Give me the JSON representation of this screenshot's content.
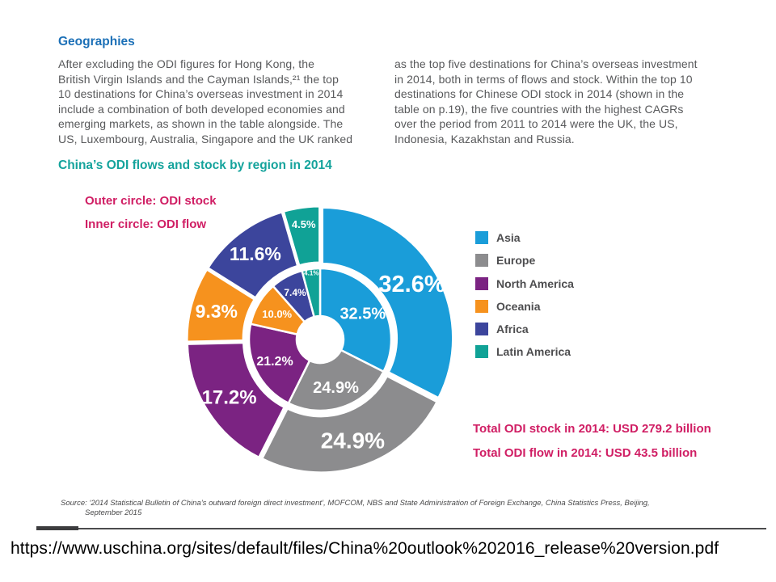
{
  "page": {
    "url_caption": "https://www.uschina.org/sites/default/files/China%20outlook%202016_release%20version.pdf"
  },
  "article": {
    "section_heading": "Geographies",
    "col_left": "After excluding the ODI figures for Hong Kong, the\nBritish Virgin Islands and the Cayman Islands,²¹ the top\n10 destinations for China’s overseas investment in 2014\ninclude a combination of both developed economies and\nemerging markets, as shown in the table alongside. The\nUS, Luxembourg, Australia, Singapore and the UK ranked",
    "col_right": "as the top five destinations for China’s overseas investment\nin 2014, both in terms of flows and stock. Within the top 10\ndestinations for Chinese ODI stock in 2014 (shown in the\ntable on p.19), the five countries with the highest CAGRs\nover the period from 2011 to 2014 were the UK, the US,\nIndonesia, Kazakhstan and Russia.",
    "annotation_outer": "Outer circle: ODI stock",
    "annotation_inner": "Inner circle: ODI flow",
    "total_stock": "Total ODI stock in 2014: USD 279.2 billion",
    "total_flow": "Total ODI flow in 2014: USD 43.5 billion",
    "source_line1": "Source: ‘2014 Statistical Bulletin of China’s outward foreign direct investment’, MOFCOM, NBS and State Administration of Foreign Exchange, China Statistics Press, Beijing,",
    "source_line2": "September 2015"
  },
  "colors": {
    "heading_blue": "#1c70b7",
    "title_teal": "#14a39c",
    "accent_pink": "#d01e64",
    "body_gray": "#58595b",
    "legend_text": "#4d4d4f"
  },
  "chart_data": {
    "type": "donut-nested",
    "title": "China’s ODI flows and stock by region in 2014",
    "annotations": [
      "Outer circle: ODI stock",
      "Inner circle: ODI flow"
    ],
    "categories": [
      "Asia",
      "Europe",
      "North America",
      "Oceania",
      "Africa",
      "Latin America"
    ],
    "colors": [
      "#1a9dd9",
      "#8c8c8e",
      "#7b2382",
      "#f6921e",
      "#3c459c",
      "#10a296"
    ],
    "series": [
      {
        "name": "ODI stock (outer circle)",
        "unit": "%",
        "values": [
          32.6,
          24.9,
          17.2,
          9.3,
          11.6,
          4.5
        ]
      },
      {
        "name": "ODI flow (inner circle)",
        "unit": "%",
        "values": [
          32.5,
          24.9,
          21.2,
          10.0,
          7.4,
          4.1
        ]
      }
    ],
    "totals": {
      "odi_stock_2014_usd_billion": 279.2,
      "odi_flow_2014_usd_billion": 43.5
    },
    "legend_position": "right",
    "start_angle_deg": 0,
    "direction": "clockwise"
  }
}
